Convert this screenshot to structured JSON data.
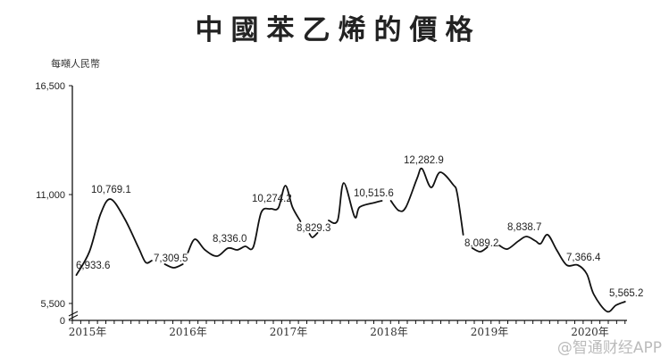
{
  "chart_data": {
    "type": "line",
    "title": "中國苯乙烯的價格",
    "ylabel": "每噸人民幣",
    "xlabel": "",
    "y_ticks": [
      "0",
      "5,500",
      "11,000",
      "16,500"
    ],
    "y_tick_values": [
      0,
      5500,
      11000,
      16500
    ],
    "ylim": [
      0,
      16500
    ],
    "y_axis_break": true,
    "x_ticks": [
      "2015年",
      "2016年",
      "2017年",
      "2018年",
      "2019年",
      "2020年"
    ],
    "x_tick_values": [
      2015,
      2016,
      2017,
      2018,
      2019,
      2020
    ],
    "xlim": [
      2015,
      2020.7
    ],
    "minor_ticks": "monthly",
    "grid": false,
    "line_color": "#111111",
    "segments": [
      [
        [
          2015.04,
          6934
        ],
        [
          2015.17,
          8115
        ],
        [
          2015.28,
          10008
        ],
        [
          2015.38,
          10769
        ],
        [
          2015.52,
          9783
        ],
        [
          2015.66,
          8295
        ],
        [
          2015.73,
          7574
        ],
        [
          2015.79,
          7664
        ]
      ],
      [
        [
          2015.92,
          7484
        ],
        [
          2016.01,
          7303
        ],
        [
          2016.1,
          7484
        ]
      ],
      [
        [
          2016.15,
          8070
        ],
        [
          2016.22,
          8745
        ],
        [
          2016.32,
          8205
        ],
        [
          2016.44,
          7889
        ],
        [
          2016.55,
          8295
        ],
        [
          2016.64,
          8205
        ],
        [
          2016.72,
          8385
        ],
        [
          2016.8,
          8340
        ],
        [
          2016.88,
          10099
        ],
        [
          2016.97,
          10279
        ],
        [
          2017.05,
          10325
        ],
        [
          2017.12,
          11450
        ],
        [
          2017.19,
          10370
        ],
        [
          2017.27,
          9649
        ]
      ],
      [
        [
          2017.36,
          9018
        ],
        [
          2017.39,
          8836
        ],
        [
          2017.44,
          9062
        ]
      ],
      [
        [
          2017.55,
          9694
        ],
        [
          2017.64,
          9694
        ],
        [
          2017.7,
          11586
        ],
        [
          2017.81,
          9874
        ],
        [
          2017.86,
          10370
        ],
        [
          2018.01,
          10596
        ],
        [
          2018.08,
          10686
        ]
      ],
      [
        [
          2018.17,
          10686
        ],
        [
          2018.25,
          10190
        ],
        [
          2018.32,
          10370
        ],
        [
          2018.43,
          11812
        ],
        [
          2018.48,
          12307
        ],
        [
          2018.57,
          11360
        ],
        [
          2018.66,
          12127
        ],
        [
          2018.79,
          11495
        ],
        [
          2018.83,
          11044
        ],
        [
          2018.89,
          8971
        ]
      ],
      [
        [
          2018.98,
          8295
        ],
        [
          2019.06,
          8115
        ],
        [
          2019.13,
          8340
        ]
      ],
      [
        [
          2019.25,
          8430
        ],
        [
          2019.33,
          8250
        ],
        [
          2019.44,
          8655
        ],
        [
          2019.52,
          8881
        ],
        [
          2019.61,
          8655
        ],
        [
          2019.66,
          8520
        ],
        [
          2019.73,
          8971
        ],
        [
          2019.82,
          8205
        ],
        [
          2019.92,
          7439
        ],
        [
          2020.03,
          7439
        ],
        [
          2020.12,
          6988
        ],
        [
          2020.19,
          5951
        ],
        [
          2020.32,
          5095
        ],
        [
          2020.41,
          5410
        ],
        [
          2020.5,
          5590
        ]
      ]
    ],
    "annotations": [
      "6,933.6",
      "10,769.1",
      "7,309.5",
      "8,336.0",
      "10,274.2",
      "8,829.3",
      "10,515.6",
      "12,282.9",
      "8,089.2",
      "8,838.7",
      "7,366.4",
      "5,565.2"
    ]
  },
  "watermark": "@智通财经APP"
}
